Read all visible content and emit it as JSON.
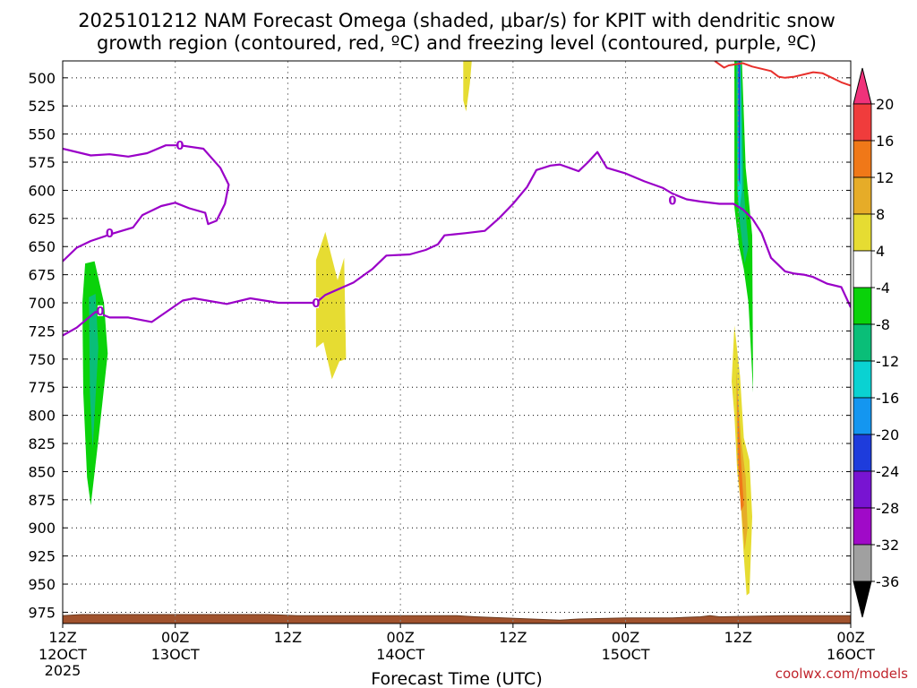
{
  "title_line1": "2025101212 NAM Forecast Omega (shaded, μbar/s) for KPIT with dendritic snow",
  "title_line2": "growth region (contoured, red, ºC) and freezing level (contoured, purple, ºC)",
  "credit": "coolwx.com/models",
  "chart_data": {
    "type": "area",
    "xlabel": "Forecast Time (UTC)",
    "x_range_hours": [
      0,
      84
    ],
    "x_ticks": [
      {
        "hour": 0,
        "label": "12Z",
        "date": "12OCT",
        "year": "2025"
      },
      {
        "hour": 12,
        "label": "00Z",
        "date": "13OCT",
        "year": ""
      },
      {
        "hour": 24,
        "label": "12Z",
        "date": "",
        "year": ""
      },
      {
        "hour": 36,
        "label": "00Z",
        "date": "14OCT",
        "year": ""
      },
      {
        "hour": 48,
        "label": "12Z",
        "date": "",
        "year": ""
      },
      {
        "hour": 60,
        "label": "00Z",
        "date": "15OCT",
        "year": ""
      },
      {
        "hour": 72,
        "label": "12Z",
        "date": "",
        "year": ""
      },
      {
        "hour": 84,
        "label": "00Z",
        "date": "16OCT",
        "year": ""
      }
    ],
    "y_ticks": [
      500,
      525,
      550,
      575,
      600,
      625,
      650,
      675,
      700,
      725,
      750,
      775,
      800,
      825,
      850,
      875,
      900,
      925,
      950,
      975
    ],
    "y_range_mb": [
      485,
      985
    ],
    "grid": true,
    "colorbar": {
      "labels": [
        "20",
        "16",
        "12",
        "8",
        "4",
        "-4",
        "-8",
        "-12",
        "-16",
        "-20",
        "-24",
        "-28",
        "-32",
        "-36"
      ],
      "colors": [
        "#f0327a",
        "#f03c3c",
        "#f07818",
        "#e6ac28",
        "#e6dc32",
        "#ffffff",
        "#0ad20a",
        "#0abe78",
        "#0ad2d2",
        "#1496f0",
        "#1e3cdc",
        "#7814d2",
        "#a00ac8",
        "#a0a0a0",
        "#000000"
      ]
    },
    "freezing_level_color": "#9a00c8",
    "dgz_color": "#e8302c",
    "freezing_level_label": "0",
    "freezing_level_upper": [
      [
        0,
        563
      ],
      [
        3,
        569
      ],
      [
        5,
        568
      ],
      [
        7,
        570
      ],
      [
        9,
        567
      ],
      [
        11,
        560
      ],
      [
        12.5,
        560
      ],
      [
        15,
        563
      ],
      [
        16.8,
        580
      ],
      [
        17.7,
        595
      ],
      [
        17.3,
        612
      ],
      [
        16.4,
        627
      ],
      [
        15.5,
        630
      ],
      [
        15.2,
        620
      ],
      [
        13.5,
        616
      ],
      [
        12,
        611
      ],
      [
        10.5,
        614
      ],
      [
        8.5,
        622
      ],
      [
        7.5,
        633
      ],
      [
        5.5,
        638
      ],
      [
        3,
        645
      ],
      [
        1.5,
        651
      ],
      [
        0,
        663
      ]
    ],
    "freezing_level_main": [
      [
        0,
        729
      ],
      [
        1.5,
        722
      ],
      [
        3.5,
        708
      ],
      [
        5,
        713
      ],
      [
        7,
        713
      ],
      [
        9.5,
        717
      ],
      [
        12.8,
        698
      ],
      [
        14,
        696
      ],
      [
        17.5,
        701
      ],
      [
        20,
        696
      ],
      [
        23,
        700
      ],
      [
        27,
        700
      ],
      [
        28,
        693
      ],
      [
        31,
        682
      ],
      [
        33,
        670
      ],
      [
        34.5,
        658
      ],
      [
        37,
        657
      ],
      [
        38.7,
        653
      ],
      [
        40,
        648
      ],
      [
        40.7,
        640
      ],
      [
        43,
        638
      ],
      [
        45,
        636
      ],
      [
        46.5,
        625
      ],
      [
        48,
        612
      ],
      [
        49.5,
        597
      ],
      [
        50.5,
        582
      ],
      [
        52,
        578
      ],
      [
        53,
        577
      ],
      [
        54,
        580
      ],
      [
        55,
        583
      ],
      [
        56,
        575
      ],
      [
        57,
        566
      ],
      [
        58,
        580
      ],
      [
        60,
        585
      ],
      [
        62,
        592
      ],
      [
        64,
        598
      ],
      [
        65,
        603
      ],
      [
        66.5,
        608
      ],
      [
        68,
        610
      ],
      [
        70,
        612
      ],
      [
        71.5,
        612
      ],
      [
        72.5,
        617
      ],
      [
        73.5,
        625
      ],
      [
        74.5,
        638
      ],
      [
        75.5,
        660
      ],
      [
        77,
        672
      ],
      [
        78,
        674
      ],
      [
        79,
        675
      ],
      [
        80,
        677
      ],
      [
        81.5,
        683
      ],
      [
        83,
        686
      ],
      [
        84,
        704
      ]
    ],
    "freezing_level_label_points": [
      [
        12.5,
        560
      ],
      [
        5,
        638
      ],
      [
        4,
        707
      ],
      [
        27,
        700
      ],
      [
        65,
        609
      ]
    ],
    "dgz_isotherm": [
      [
        69.5,
        485
      ],
      [
        70.5,
        491
      ],
      [
        71,
        489
      ],
      [
        72.5,
        487
      ],
      [
        73.5,
        490
      ],
      [
        74.5,
        492
      ],
      [
        75.5,
        494
      ],
      [
        76.3,
        499
      ],
      [
        77,
        500
      ],
      [
        78,
        499
      ],
      [
        79,
        497
      ],
      [
        80,
        495
      ],
      [
        81,
        496
      ],
      [
        82,
        500
      ],
      [
        83,
        504
      ],
      [
        84,
        507
      ]
    ],
    "omega_regions": [
      {
        "value_band": "-4 to -8",
        "points": [
          [
            2.4,
            665
          ],
          [
            3.4,
            663
          ],
          [
            4.4,
            700
          ],
          [
            4.8,
            745
          ],
          [
            3.8,
            822
          ],
          [
            3,
            880
          ],
          [
            2.6,
            855
          ],
          [
            2.2,
            780
          ],
          [
            2.1,
            700
          ]
        ]
      },
      {
        "value_band": "-8 to -12",
        "points": [
          [
            2.8,
            695
          ],
          [
            3.5,
            692
          ],
          [
            3.8,
            740
          ],
          [
            3.2,
            830
          ],
          [
            2.9,
            780
          ]
        ]
      },
      {
        "value_band": "4 to 8",
        "points": [
          [
            27,
            662
          ],
          [
            28,
            637
          ],
          [
            29.3,
            680
          ],
          [
            30,
            660
          ],
          [
            30.2,
            750
          ],
          [
            29.5,
            752
          ],
          [
            28.7,
            768
          ],
          [
            27.8,
            735
          ],
          [
            27,
            740
          ]
        ]
      },
      {
        "value_band": "4 to 8",
        "points": [
          [
            42.7,
            485
          ],
          [
            43.6,
            485
          ],
          [
            43.4,
            505
          ],
          [
            43,
            530
          ],
          [
            42.7,
            520
          ]
        ]
      },
      {
        "value_band": "-4 to -8",
        "points": [
          [
            71.6,
            485
          ],
          [
            72.4,
            485
          ],
          [
            72.8,
            580
          ],
          [
            73.5,
            640
          ],
          [
            73.6,
            780
          ],
          [
            73.1,
            700
          ],
          [
            72.6,
            670
          ],
          [
            72.1,
            650
          ],
          [
            71.6,
            615
          ]
        ]
      },
      {
        "value_band": "-8 to -12",
        "points": [
          [
            71.8,
            485
          ],
          [
            72.3,
            485
          ],
          [
            72.6,
            600
          ],
          [
            73.1,
            650
          ],
          [
            72.7,
            665
          ],
          [
            72.2,
            630
          ],
          [
            71.9,
            600
          ]
        ]
      },
      {
        "value_band": "-12 to -16",
        "points": [
          [
            71.95,
            485
          ],
          [
            72.25,
            485
          ],
          [
            72.4,
            600
          ],
          [
            72.1,
            620
          ],
          [
            71.95,
            600
          ]
        ]
      },
      {
        "value_band": "-20 to -24",
        "points": [
          [
            72.0,
            485
          ],
          [
            72.2,
            485
          ],
          [
            72.2,
            595
          ],
          [
            72.05,
            590
          ]
        ]
      },
      {
        "value_band": "4 to 8",
        "points": [
          [
            71.6,
            720
          ],
          [
            72.2,
            765
          ],
          [
            72.6,
            820
          ],
          [
            73.2,
            840
          ],
          [
            73.5,
            890
          ],
          [
            73.2,
            958
          ],
          [
            72.9,
            960
          ],
          [
            72.6,
            925
          ],
          [
            72.3,
            880
          ],
          [
            71.9,
            850
          ],
          [
            71.6,
            800
          ],
          [
            71.3,
            770
          ]
        ]
      },
      {
        "value_band": "8 to 12",
        "points": [
          [
            71.8,
            760
          ],
          [
            72.3,
            820
          ],
          [
            72.8,
            855
          ],
          [
            73.0,
            900
          ],
          [
            72.7,
            920
          ],
          [
            72.2,
            870
          ],
          [
            71.9,
            840
          ]
        ]
      },
      {
        "value_band": "12 to 16",
        "points": [
          [
            71.9,
            780
          ],
          [
            72.3,
            840
          ],
          [
            72.6,
            880
          ],
          [
            72.3,
            885
          ],
          [
            72.0,
            840
          ]
        ]
      }
    ],
    "terrain": {
      "color": "#a0522d",
      "outline": "#6b3a1f",
      "top_surface": [
        [
          0,
          978
        ],
        [
          2,
          977
        ],
        [
          22,
          977
        ],
        [
          25,
          978
        ],
        [
          42,
          978
        ],
        [
          44,
          979
        ],
        [
          50,
          981
        ],
        [
          53,
          982
        ],
        [
          55,
          981
        ],
        [
          60,
          980
        ],
        [
          65,
          980
        ],
        [
          68,
          979
        ],
        [
          69,
          978
        ],
        [
          70,
          979
        ],
        [
          77,
          978
        ],
        [
          80,
          978
        ],
        [
          84,
          978
        ]
      ]
    }
  }
}
